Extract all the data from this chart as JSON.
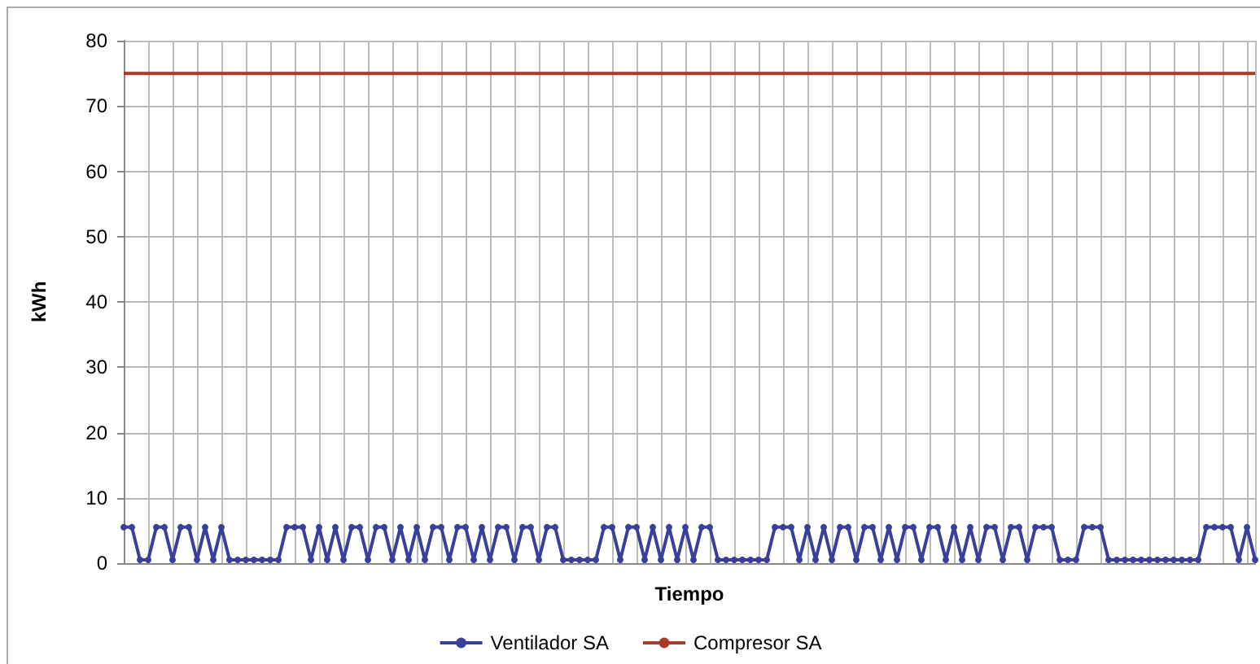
{
  "chart_data": {
    "type": "line",
    "xlabel": "Tiempo",
    "ylabel": "kWh",
    "ylim": [
      0,
      80
    ],
    "yticks": [
      0,
      10,
      20,
      30,
      40,
      50,
      60,
      70,
      80
    ],
    "grid": true,
    "legend": "bottom",
    "categories": [
      null,
      null,
      null,
      null,
      null,
      null,
      null,
      null,
      null,
      null,
      null,
      null,
      null,
      null,
      null,
      null,
      null,
      null,
      null,
      null,
      null,
      null,
      null,
      null,
      null,
      null,
      null,
      null,
      null,
      null,
      null,
      null,
      null,
      null,
      null,
      null,
      null,
      null,
      null,
      null,
      null,
      null,
      null,
      null,
      null,
      null,
      null,
      null,
      null,
      null,
      null,
      null,
      null,
      null,
      null,
      null,
      null,
      null,
      null,
      null,
      null,
      null,
      null,
      null,
      null,
      null,
      null,
      null,
      null,
      null,
      null,
      null,
      null,
      null,
      null,
      null,
      null,
      null,
      null,
      null,
      null,
      null,
      null,
      null,
      null,
      null,
      null,
      null,
      null,
      null,
      null,
      null,
      null,
      null,
      null,
      null,
      null,
      null,
      null,
      null,
      null,
      null,
      null,
      null,
      null,
      null,
      null,
      null,
      null,
      null,
      null,
      null,
      null,
      null,
      null,
      null,
      null,
      null,
      null,
      null,
      null,
      null,
      null,
      null,
      null,
      null,
      null,
      null,
      null,
      null,
      null,
      null,
      null,
      null,
      null,
      null,
      null,
      null,
      null,
      null
    ],
    "series": [
      {
        "name": "Ventilador SA",
        "color": "#3b3f9c",
        "marker": "circle",
        "values": [
          5.5,
          5.5,
          0.5,
          0.5,
          5.5,
          5.5,
          0.5,
          5.5,
          5.5,
          0.5,
          5.5,
          0.5,
          5.5,
          0.5,
          0.5,
          0.5,
          0.5,
          0.5,
          0.5,
          0.5,
          5.5,
          5.5,
          5.5,
          0.5,
          5.5,
          0.5,
          5.5,
          0.5,
          5.5,
          5.5,
          0.5,
          5.5,
          5.5,
          0.5,
          5.5,
          0.5,
          5.5,
          0.5,
          5.5,
          5.5,
          0.5,
          5.5,
          5.5,
          0.5,
          5.5,
          0.5,
          5.5,
          5.5,
          0.5,
          5.5,
          5.5,
          0.5,
          5.5,
          5.5,
          0.5,
          0.5,
          0.5,
          0.5,
          0.5,
          5.5,
          5.5,
          0.5,
          5.5,
          5.5,
          0.5,
          5.5,
          0.5,
          5.5,
          0.5,
          5.5,
          0.5,
          5.5,
          5.5,
          0.5,
          0.5,
          0.5,
          0.5,
          0.5,
          0.5,
          0.5,
          5.5,
          5.5,
          5.5,
          0.5,
          5.5,
          0.5,
          5.5,
          0.5,
          5.5,
          5.5,
          0.5,
          5.5,
          5.5,
          0.5,
          5.5,
          0.5,
          5.5,
          5.5,
          0.5,
          5.5,
          5.5,
          0.5,
          5.5,
          0.5,
          5.5,
          0.5,
          5.5,
          5.5,
          0.5,
          5.5,
          5.5,
          0.5,
          5.5,
          5.5,
          5.5,
          0.5,
          0.5,
          0.5,
          5.5,
          5.5,
          5.5,
          0.5,
          0.5,
          0.5,
          0.5,
          0.5,
          0.5,
          0.5,
          0.5,
          0.5,
          0.5,
          0.5,
          0.5,
          5.5,
          5.5,
          5.5,
          5.5,
          0.5,
          5.5,
          0.5
        ]
      },
      {
        "name": "Compresor SA",
        "color": "#a83a2a",
        "marker": "none",
        "values": [
          75,
          75,
          75,
          75,
          75,
          75,
          75,
          75,
          75,
          75,
          75,
          75,
          75,
          75,
          75,
          75,
          75,
          75,
          75,
          75,
          75,
          75,
          75,
          75,
          75,
          75,
          75,
          75,
          75,
          75,
          75,
          75,
          75,
          75,
          75,
          75,
          75,
          75,
          75,
          75,
          75,
          75,
          75,
          75,
          75,
          75,
          75,
          75,
          75,
          75,
          75,
          75,
          75,
          75,
          75,
          75,
          75,
          75,
          75,
          75,
          75,
          75,
          75,
          75,
          75,
          75,
          75,
          75,
          75,
          75,
          75,
          75,
          75,
          75,
          75,
          75,
          75,
          75,
          75,
          75,
          75,
          75,
          75,
          75,
          75,
          75,
          75,
          75,
          75,
          75,
          75,
          75,
          75,
          75,
          75,
          75,
          75,
          75,
          75,
          75,
          75,
          75,
          75,
          75,
          75,
          75,
          75,
          75,
          75,
          75,
          75,
          75,
          75,
          75,
          75,
          75,
          75,
          75,
          75,
          75,
          75,
          75,
          75,
          75,
          75,
          75,
          75,
          75,
          75,
          75,
          75,
          75,
          75,
          75,
          75,
          75,
          75,
          75,
          75,
          75
        ]
      }
    ]
  }
}
